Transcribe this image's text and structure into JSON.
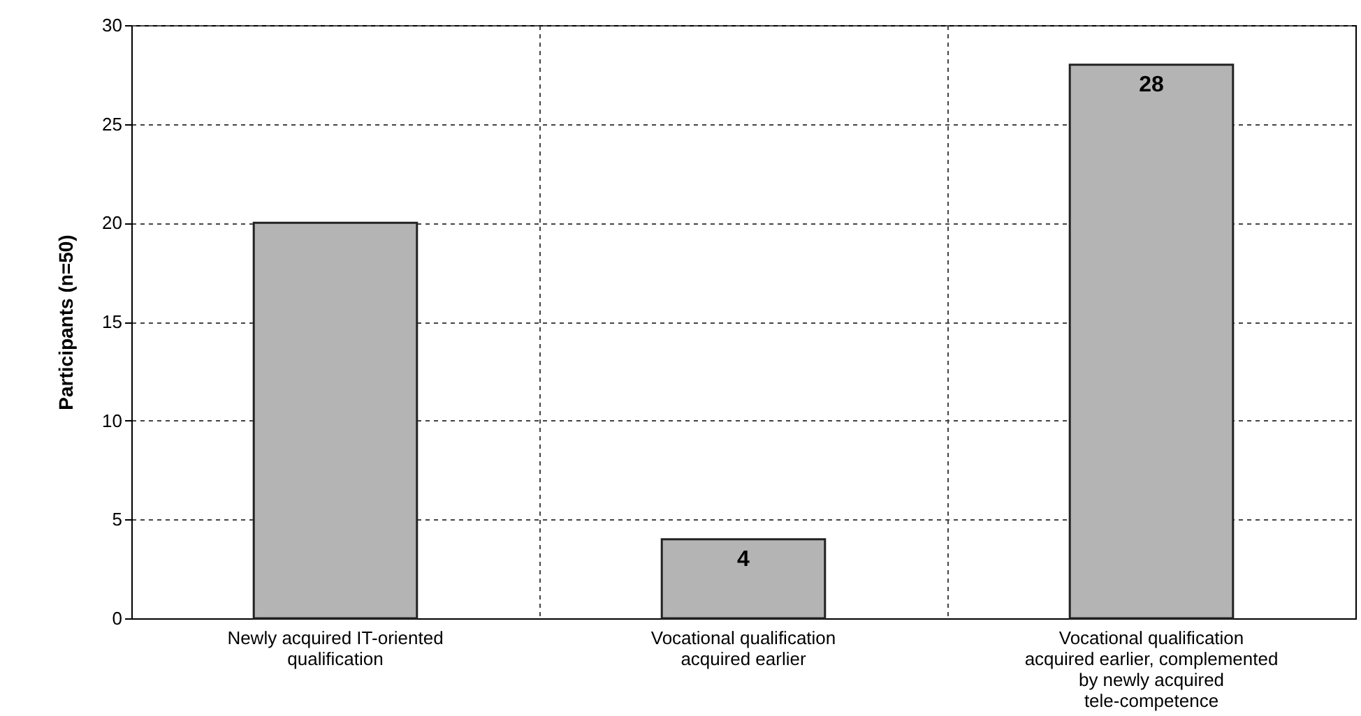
{
  "chart_data": {
    "type": "bar",
    "ylabel": "Participants (n=50)",
    "categories": [
      "Newly acquired IT-oriented qualification",
      "Vocational qualification acquired earlier",
      "Vocational qualification acquired earlier, complemented by newly acquired tele-competence"
    ],
    "values": [
      20,
      4,
      28
    ],
    "value_labels": [
      null,
      "4",
      "28"
    ],
    "color": "#b4b4b4",
    "ylim": [
      0,
      30
    ],
    "yticks": [
      0,
      5,
      10,
      15,
      20,
      25,
      30
    ],
    "grid": true
  }
}
